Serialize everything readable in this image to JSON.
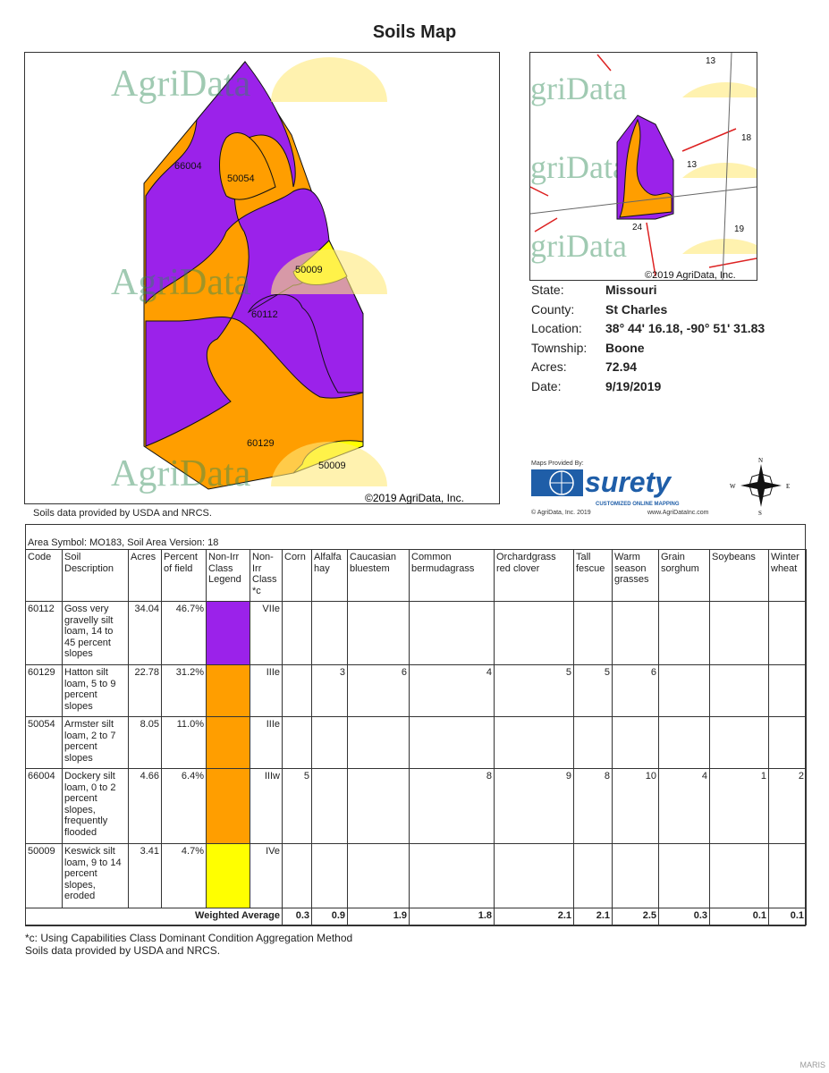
{
  "title": "Soils Map",
  "map": {
    "labels": [
      "66004",
      "50054",
      "50009",
      "60112",
      "60129",
      "50009"
    ],
    "watermark": "AgriData",
    "copyright": "©2019 AgriData, Inc.",
    "colors": {
      "purple": "#9b22ea",
      "orange": "#ff9e00",
      "yellow": "#ffff00"
    }
  },
  "source_note": "Soils data provided by USDA and NRCS.",
  "minimap": {
    "labels": [
      "13",
      "18",
      "13",
      "24",
      "19"
    ],
    "watermark": "griData",
    "copyright": "©2019 AgriData, Inc."
  },
  "info": [
    {
      "label": "State:",
      "value": "Missouri"
    },
    {
      "label": "County:",
      "value": "St Charles"
    },
    {
      "label": "Location:",
      "value": "38° 44' 16.18,  -90° 51' 31.83"
    },
    {
      "label": "Township:",
      "value": "Boone"
    },
    {
      "label": "Acres:",
      "value": "72.94"
    },
    {
      "label": "Date:",
      "value": "9/19/2019"
    }
  ],
  "logo": {
    "provided_by": "Maps Provided By:",
    "name": "surety",
    "tagline": "CUSTOMIZED ONLINE MAPPING",
    "copyright": "© AgriData, Inc. 2019",
    "url": "www.AgriDataInc.com"
  },
  "compass": {
    "n": "N",
    "s": "S",
    "e": "E",
    "w": "W"
  },
  "table": {
    "area_symbol": "Area Symbol: MO183, Soil Area Version: 18",
    "headers": [
      "Code",
      "Soil Description",
      "Acres",
      "Percent of field",
      "Non-Irr Class Legend",
      "Non-Irr Class *c",
      "Corn",
      "Alfalfa hay",
      "Caucasian bluestem",
      "Common bermudagrass",
      "Orchardgrass red clover",
      "Tall fescue",
      "Warm season grasses",
      "Grain sorghum",
      "Soybeans",
      "Winter wheat"
    ],
    "rows": [
      {
        "code": "60112",
        "desc": "Goss very gravelly silt loam, 14 to 45 percent slopes",
        "acres": "34.04",
        "pct": "46.7%",
        "color": "#9b22ea",
        "cls": "VIIe",
        "vals": [
          "",
          "",
          "",
          "",
          "",
          "",
          "",
          "",
          "",
          ""
        ]
      },
      {
        "code": "60129",
        "desc": "Hatton silt loam, 5 to 9 percent slopes",
        "acres": "22.78",
        "pct": "31.2%",
        "color": "#ff9e00",
        "cls": "IIIe",
        "vals": [
          "",
          "3",
          "6",
          "4",
          "5",
          "5",
          "6",
          "",
          "",
          ""
        ]
      },
      {
        "code": "50054",
        "desc": "Armster silt loam, 2 to 7 percent slopes",
        "acres": "8.05",
        "pct": "11.0%",
        "color": "#ff9e00",
        "cls": "IIIe",
        "vals": [
          "",
          "",
          "",
          "",
          "",
          "",
          "",
          "",
          "",
          ""
        ]
      },
      {
        "code": "66004",
        "desc": "Dockery silt loam, 0 to 2 percent slopes, frequently flooded",
        "acres": "4.66",
        "pct": "6.4%",
        "color": "#ff9e00",
        "cls": "IIIw",
        "vals": [
          "5",
          "",
          "",
          "8",
          "9",
          "8",
          "10",
          "4",
          "1",
          "2"
        ]
      },
      {
        "code": "50009",
        "desc": "Keswick silt loam, 9 to 14 percent slopes, eroded",
        "acres": "3.41",
        "pct": "4.7%",
        "color": "#ffff00",
        "cls": "IVe",
        "vals": [
          "",
          "",
          "",
          "",
          "",
          "",
          "",
          "",
          "",
          ""
        ]
      }
    ],
    "weighted_label": "Weighted Average",
    "weighted": [
      "0.3",
      "0.9",
      "1.9",
      "1.8",
      "2.1",
      "2.1",
      "2.5",
      "0.3",
      "0.1",
      "0.1"
    ]
  },
  "footnotes": [
    "*c: Using Capabilities Class Dominant Condition Aggregation Method",
    "Soils data provided by USDA and NRCS."
  ],
  "corner_mark": "MARIS"
}
